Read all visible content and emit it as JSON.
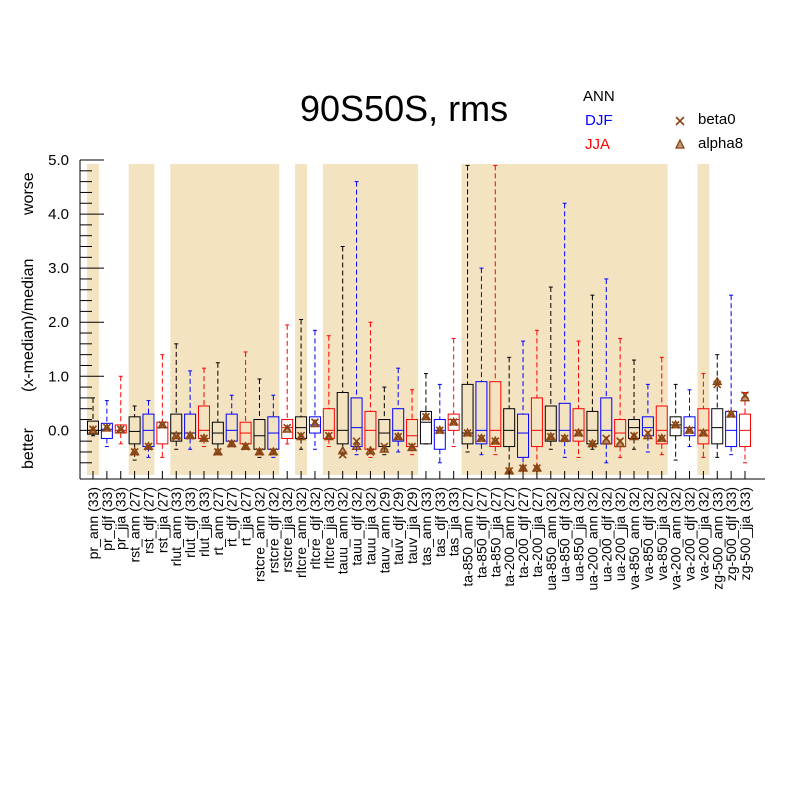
{
  "chart_data": {
    "type": "box",
    "title": "90S50S, rms",
    "seasons": [
      {
        "label": "ANN",
        "color": "#000000"
      },
      {
        "label": "DJF",
        "color": "#0000ff"
      },
      {
        "label": "JJA",
        "color": "#ff0000"
      }
    ],
    "markers": [
      {
        "label": "beta0",
        "symbol": "x",
        "color": "#8b4513"
      },
      {
        "label": "alpha8",
        "symbol": "triangle",
        "color": "#8b4513"
      }
    ],
    "ylabel": "(x-median)/median",
    "ylabel_better": "better",
    "ylabel_worse": "worse",
    "ylim": [
      -0.9,
      5.0
    ],
    "yticks": [
      "5.0",
      "4.0",
      "3.0",
      "2.0",
      "1.0",
      "0.0"
    ],
    "shade_color": "#f3e3c0",
    "categories": [
      {
        "name": "pr_ann (33)",
        "s": 0,
        "min": -0.1,
        "q1": -0.07,
        "med": 0.0,
        "q3": 0.17,
        "max": 0.6,
        "b": 0.02,
        "a": 0.0,
        "shade": true
      },
      {
        "name": "pr_djf (33)",
        "s": 1,
        "min": -0.3,
        "q1": -0.15,
        "med": 0.02,
        "q3": 0.13,
        "max": 0.55,
        "b": 0.05,
        "a": 0.04,
        "shade": false
      },
      {
        "name": "pr_jja (33)",
        "s": 2,
        "min": -0.25,
        "q1": -0.05,
        "med": 0.0,
        "q3": 0.1,
        "max": 1.0,
        "b": 0.02,
        "a": 0.01,
        "shade": false
      },
      {
        "name": "rst_ann (27)",
        "s": 0,
        "min": -0.55,
        "q1": -0.25,
        "med": -0.02,
        "q3": 0.25,
        "max": 0.45,
        "b": -0.4,
        "a": -0.4,
        "shade": true
      },
      {
        "name": "rst_djf (27)",
        "s": 1,
        "min": -0.5,
        "q1": -0.3,
        "med": 0.0,
        "q3": 0.3,
        "max": 0.55,
        "b": -0.3,
        "a": -0.3,
        "shade": true
      },
      {
        "name": "rst_jja (27)",
        "s": 2,
        "min": -0.5,
        "q1": -0.25,
        "med": 0.05,
        "q3": 0.15,
        "max": 1.4,
        "b": 0.1,
        "a": 0.1,
        "shade": false
      },
      {
        "name": "rlut_ann (33)",
        "s": 0,
        "min": -0.35,
        "q1": -0.2,
        "med": -0.05,
        "q3": 0.3,
        "max": 1.6,
        "b": -0.12,
        "a": -0.1,
        "shade": true
      },
      {
        "name": "rlut_djf (33)",
        "s": 1,
        "min": -0.35,
        "q1": -0.15,
        "med": -0.05,
        "q3": 0.3,
        "max": 1.1,
        "b": -0.1,
        "a": -0.1,
        "shade": true
      },
      {
        "name": "rlut_jja (33)",
        "s": 2,
        "min": -0.3,
        "q1": -0.15,
        "med": 0.0,
        "q3": 0.45,
        "max": 1.15,
        "b": -0.15,
        "a": -0.15,
        "shade": true
      },
      {
        "name": "rt_ann (27)",
        "s": 0,
        "min": -0.45,
        "q1": -0.25,
        "med": -0.05,
        "q3": 0.15,
        "max": 1.25,
        "b": -0.4,
        "a": -0.4,
        "shade": true
      },
      {
        "name": "rt_djf (27)",
        "s": 1,
        "min": -0.3,
        "q1": -0.2,
        "med": 0.0,
        "q3": 0.3,
        "max": 0.65,
        "b": -0.25,
        "a": -0.25,
        "shade": true
      },
      {
        "name": "rt_jja (27)",
        "s": 2,
        "min": -0.35,
        "q1": -0.25,
        "med": -0.05,
        "q3": 0.15,
        "max": 1.45,
        "b": -0.3,
        "a": -0.3,
        "shade": true
      },
      {
        "name": "rstcre_ann (32)",
        "s": 0,
        "min": -0.5,
        "q1": -0.35,
        "med": -0.1,
        "q3": 0.2,
        "max": 0.95,
        "b": -0.4,
        "a": -0.4,
        "shade": true
      },
      {
        "name": "rstcre_djf (32)",
        "s": 1,
        "min": -0.5,
        "q1": -0.35,
        "med": -0.05,
        "q3": 0.25,
        "max": 0.65,
        "b": -0.4,
        "a": -0.4,
        "shade": true
      },
      {
        "name": "rstcre_jja (32)",
        "s": 2,
        "min": -0.25,
        "q1": -0.15,
        "med": 0.05,
        "q3": 0.2,
        "max": 1.95,
        "b": 0.05,
        "a": 0.02,
        "shade": false
      },
      {
        "name": "rltcre_ann (32)",
        "s": 0,
        "min": -0.35,
        "q1": -0.15,
        "med": 0.05,
        "q3": 0.25,
        "max": 2.05,
        "b": -0.1,
        "a": -0.12,
        "shade": true
      },
      {
        "name": "rltcre_djf (32)",
        "s": 1,
        "min": -0.35,
        "q1": -0.05,
        "med": 0.1,
        "q3": 0.25,
        "max": 1.85,
        "b": 0.15,
        "a": 0.12,
        "shade": false
      },
      {
        "name": "rltcre_jja (32)",
        "s": 2,
        "min": -0.3,
        "q1": -0.15,
        "med": 0.0,
        "q3": 0.4,
        "max": 1.75,
        "b": -0.1,
        "a": -0.12,
        "shade": true
      },
      {
        "name": "tauu_ann (32)",
        "s": 0,
        "min": -0.45,
        "q1": -0.25,
        "med": 0.0,
        "q3": 0.7,
        "max": 3.4,
        "b": -0.45,
        "a": -0.38,
        "shade": true
      },
      {
        "name": "tauu_djf (32)",
        "s": 1,
        "min": -0.45,
        "q1": -0.3,
        "med": 0.05,
        "q3": 0.6,
        "max": 4.6,
        "b": -0.2,
        "a": -0.3,
        "shade": true
      },
      {
        "name": "tauu_jja (32)",
        "s": 2,
        "min": -0.5,
        "q1": -0.35,
        "med": 0.0,
        "q3": 0.35,
        "max": 2.0,
        "b": -0.4,
        "a": -0.38,
        "shade": true
      },
      {
        "name": "tauv_ann (29)",
        "s": 0,
        "min": -0.45,
        "q1": -0.3,
        "med": -0.05,
        "q3": 0.2,
        "max": 0.8,
        "b": -0.3,
        "a": -0.35,
        "shade": true
      },
      {
        "name": "tauv_djf (29)",
        "s": 1,
        "min": -0.4,
        "q1": -0.2,
        "med": 0.0,
        "q3": 0.4,
        "max": 1.15,
        "b": -0.12,
        "a": -0.12,
        "shade": true
      },
      {
        "name": "tauv_jja (29)",
        "s": 2,
        "min": -0.45,
        "q1": -0.3,
        "med": -0.1,
        "q3": 0.2,
        "max": 0.75,
        "b": -0.3,
        "a": -0.32,
        "shade": true
      },
      {
        "name": "tas_ann (33)",
        "s": 0,
        "min": -0.25,
        "q1": -0.25,
        "med": 0.15,
        "q3": 0.35,
        "max": 1.05,
        "b": 0.25,
        "a": 0.25,
        "shade": false
      },
      {
        "name": "tas_djf (33)",
        "s": 1,
        "min": -0.6,
        "q1": -0.35,
        "med": 0.0,
        "q3": 0.2,
        "max": 0.85,
        "b": 0.0,
        "a": 0.0,
        "shade": false
      },
      {
        "name": "tas_jja (33)",
        "s": 2,
        "min": -0.3,
        "q1": 0.0,
        "med": 0.2,
        "q3": 0.3,
        "max": 1.7,
        "b": 0.15,
        "a": 0.15,
        "shade": false
      },
      {
        "name": "ta-850_ann (27)",
        "s": 0,
        "min": -0.4,
        "q1": -0.25,
        "med": -0.05,
        "q3": 0.85,
        "max": 4.9,
        "b": -0.05,
        "a": -0.05,
        "shade": true
      },
      {
        "name": "ta-850_djf (27)",
        "s": 1,
        "min": -0.45,
        "q1": -0.25,
        "med": 0.0,
        "q3": 0.9,
        "max": 3.0,
        "b": -0.15,
        "a": -0.15,
        "shade": true
      },
      {
        "name": "ta-850_jja (27)",
        "s": 2,
        "min": -0.45,
        "q1": -0.3,
        "med": 0.0,
        "q3": 0.9,
        "max": 4.9,
        "b": -0.2,
        "a": -0.2,
        "shade": true
      },
      {
        "name": "ta-200_ann (27)",
        "s": 0,
        "min": -0.8,
        "q1": -0.3,
        "med": 0.0,
        "q3": 0.4,
        "max": 1.35,
        "b": -0.75,
        "a": -0.75,
        "shade": true
      },
      {
        "name": "ta-200_djf (27)",
        "s": 1,
        "min": -0.75,
        "q1": -0.5,
        "med": -0.05,
        "q3": 0.3,
        "max": 1.65,
        "b": -0.7,
        "a": -0.7,
        "shade": true
      },
      {
        "name": "ta-200_jja (27)",
        "s": 2,
        "min": -0.75,
        "q1": -0.3,
        "med": 0.0,
        "q3": 0.6,
        "max": 1.85,
        "b": -0.7,
        "a": -0.7,
        "shade": true
      },
      {
        "name": "ua-850_ann (32)",
        "s": 0,
        "min": -0.35,
        "q1": -0.2,
        "med": 0.0,
        "q3": 0.45,
        "max": 2.65,
        "b": -0.12,
        "a": -0.12,
        "shade": true
      },
      {
        "name": "ua-850_djf (32)",
        "s": 1,
        "min": -0.5,
        "q1": -0.2,
        "med": 0.0,
        "q3": 0.5,
        "max": 4.2,
        "b": -0.15,
        "a": -0.15,
        "shade": true
      },
      {
        "name": "ua-850_jja (32)",
        "s": 2,
        "min": -0.5,
        "q1": -0.2,
        "med": 0.0,
        "q3": 0.4,
        "max": 1.65,
        "b": -0.05,
        "a": -0.05,
        "shade": true
      },
      {
        "name": "ua-200_ann (32)",
        "s": 0,
        "min": -0.35,
        "q1": -0.25,
        "med": 0.0,
        "q3": 0.35,
        "max": 2.5,
        "b": -0.25,
        "a": -0.25,
        "shade": true
      },
      {
        "name": "ua-200_djf (32)",
        "s": 1,
        "min": -0.6,
        "q1": -0.25,
        "med": 0.0,
        "q3": 0.6,
        "max": 2.8,
        "b": -0.15,
        "a": -0.2,
        "shade": true
      },
      {
        "name": "ua-200_jja (32)",
        "s": 2,
        "min": -0.5,
        "q1": -0.3,
        "med": -0.05,
        "q3": 0.2,
        "max": 1.7,
        "b": -0.2,
        "a": -0.25,
        "shade": true
      },
      {
        "name": "va-850_ann (32)",
        "s": 0,
        "min": -0.35,
        "q1": -0.15,
        "med": 0.05,
        "q3": 0.2,
        "max": 1.3,
        "b": -0.1,
        "a": -0.12,
        "shade": true
      },
      {
        "name": "va-850_djf (32)",
        "s": 1,
        "min": -0.4,
        "q1": -0.1,
        "med": 0.05,
        "q3": 0.25,
        "max": 0.85,
        "b": -0.05,
        "a": -0.1,
        "shade": true
      },
      {
        "name": "va-850_jja (32)",
        "s": 2,
        "min": -0.45,
        "q1": -0.25,
        "med": 0.0,
        "q3": 0.45,
        "max": 1.35,
        "b": -0.15,
        "a": -0.15,
        "shade": true
      },
      {
        "name": "va-200_ann (32)",
        "s": 0,
        "min": -0.55,
        "q1": -0.1,
        "med": 0.1,
        "q3": 0.25,
        "max": 0.85,
        "b": 0.1,
        "a": 0.1,
        "shade": false
      },
      {
        "name": "va-200_djf (32)",
        "s": 1,
        "min": -0.3,
        "q1": -0.1,
        "med": 0.05,
        "q3": 0.25,
        "max": 0.75,
        "b": 0.0,
        "a": 0.0,
        "shade": false
      },
      {
        "name": "va-200_jja (32)",
        "s": 2,
        "min": -0.5,
        "q1": -0.25,
        "med": 0.0,
        "q3": 0.4,
        "max": 1.05,
        "b": -0.05,
        "a": -0.05,
        "shade": true
      },
      {
        "name": "zg-500_ann (33)",
        "s": 0,
        "min": -0.5,
        "q1": -0.25,
        "med": 0.05,
        "q3": 0.4,
        "max": 1.4,
        "b": 0.85,
        "a": 0.9,
        "shade": false
      },
      {
        "name": "zg-500_djf (33)",
        "s": 1,
        "min": -0.45,
        "q1": -0.3,
        "med": 0.0,
        "q3": 0.35,
        "max": 2.5,
        "b": 0.3,
        "a": 0.3,
        "shade": false
      },
      {
        "name": "zg-500_jja (33)",
        "s": 2,
        "min": -0.6,
        "q1": -0.3,
        "med": 0.0,
        "q3": 0.3,
        "max": 0.7,
        "b": 0.65,
        "a": 0.6,
        "shade": false
      }
    ]
  }
}
